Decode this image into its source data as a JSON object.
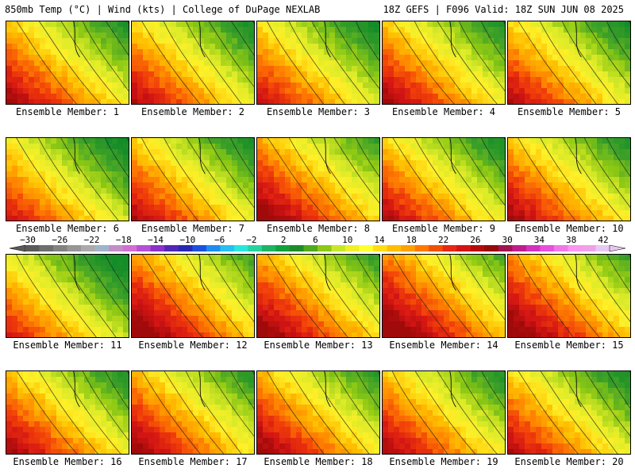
{
  "header": {
    "left": "850mb Temp (°C) | Wind (kts) | College of DuPage NEXLAB",
    "right": "18Z GEFS | F096 Valid: 18Z SUN JUN 08 2025"
  },
  "members": [
    {
      "label": "Ensemble Member: 1",
      "warmth": 0.55
    },
    {
      "label": "Ensemble Member: 2",
      "warmth": 0.5
    },
    {
      "label": "Ensemble Member: 3",
      "warmth": 0.45
    },
    {
      "label": "Ensemble Member: 4",
      "warmth": 0.55
    },
    {
      "label": "Ensemble Member: 5",
      "warmth": 0.5
    },
    {
      "label": "Ensemble Member: 6",
      "warmth": 0.4
    },
    {
      "label": "Ensemble Member: 7",
      "warmth": 0.5
    },
    {
      "label": "Ensemble Member: 8",
      "warmth": 0.65
    },
    {
      "label": "Ensemble Member: 9",
      "warmth": 0.5
    },
    {
      "label": "Ensemble Member: 10",
      "warmth": 0.55
    },
    {
      "label": "Ensemble Member: 11",
      "warmth": 0.35
    },
    {
      "label": "Ensemble Member: 12",
      "warmth": 0.7
    },
    {
      "label": "Ensemble Member: 13",
      "warmth": 0.65
    },
    {
      "label": "Ensemble Member: 14",
      "warmth": 0.75
    },
    {
      "label": "Ensemble Member: 15",
      "warmth": 0.7
    },
    {
      "label": "Ensemble Member: 16",
      "warmth": 0.55
    },
    {
      "label": "Ensemble Member: 17",
      "warmth": 0.6
    },
    {
      "label": "Ensemble Member: 18",
      "warmth": 0.6
    },
    {
      "label": "Ensemble Member: 19",
      "warmth": 0.55
    },
    {
      "label": "Ensemble Member: 20",
      "warmth": 0.5
    }
  ],
  "colorbar": {
    "labels": [
      "-30",
      "-26",
      "-22",
      "-18",
      "-14",
      "-10",
      "-6",
      "-2",
      "2",
      "6",
      "10",
      "14",
      "18",
      "22",
      "26",
      "30",
      "34",
      "38",
      "42"
    ],
    "colors": [
      "#5a5a5a",
      "#6e6e6e",
      "#828282",
      "#969696",
      "#aaaaaa",
      "#9fb4c8",
      "#c38cc8",
      "#d26ed2",
      "#b450d2",
      "#8c32c8",
      "#5028b4",
      "#2828b4",
      "#1e50dc",
      "#1e8cf0",
      "#28bef0",
      "#28e6dc",
      "#28d2a0",
      "#1eb464",
      "#14a03c",
      "#1e8c28",
      "#50aa1e",
      "#8cc814",
      "#c8e628",
      "#f0f028",
      "#ffff32",
      "#ffdc14",
      "#ffbe00",
      "#ffa000",
      "#ff7800",
      "#f05000",
      "#e62814",
      "#d21414",
      "#b40a0a",
      "#960a0a",
      "#a01450",
      "#be1e8c",
      "#d232be",
      "#e650dc",
      "#f078e6",
      "#fa96f0",
      "#f0a0e6",
      "#e6c8f0"
    ]
  }
}
